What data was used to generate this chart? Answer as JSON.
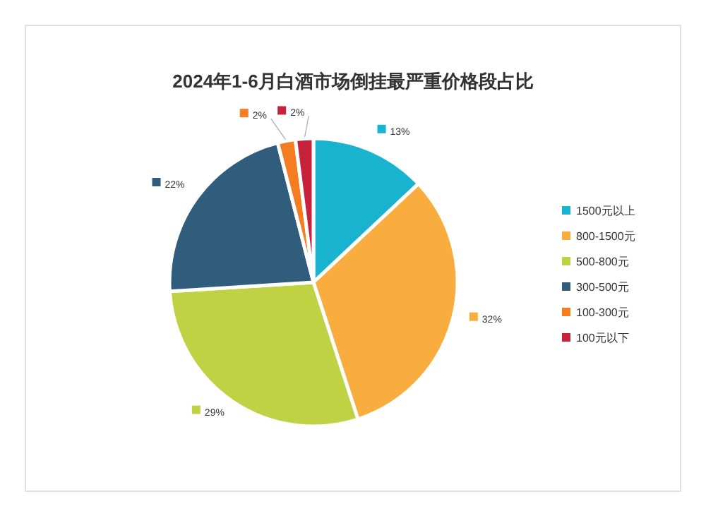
{
  "chart_data": {
    "type": "pie",
    "title": "2024年1-6月白酒市场倒挂最严重价格段占比",
    "categories": [
      "1500元以上",
      "800-1500元",
      "500-800元",
      "300-500元",
      "100-300元",
      "100元以下"
    ],
    "values": [
      13,
      32,
      29,
      22,
      2,
      2
    ],
    "colors": [
      "#1ab3cf",
      "#f9ad3e",
      "#bfd243",
      "#2f5d7b",
      "#f47d22",
      "#c8213b"
    ],
    "value_labels": [
      "13%",
      "32%",
      "29%",
      "22%",
      "2%",
      "2%"
    ],
    "legend": "right"
  }
}
